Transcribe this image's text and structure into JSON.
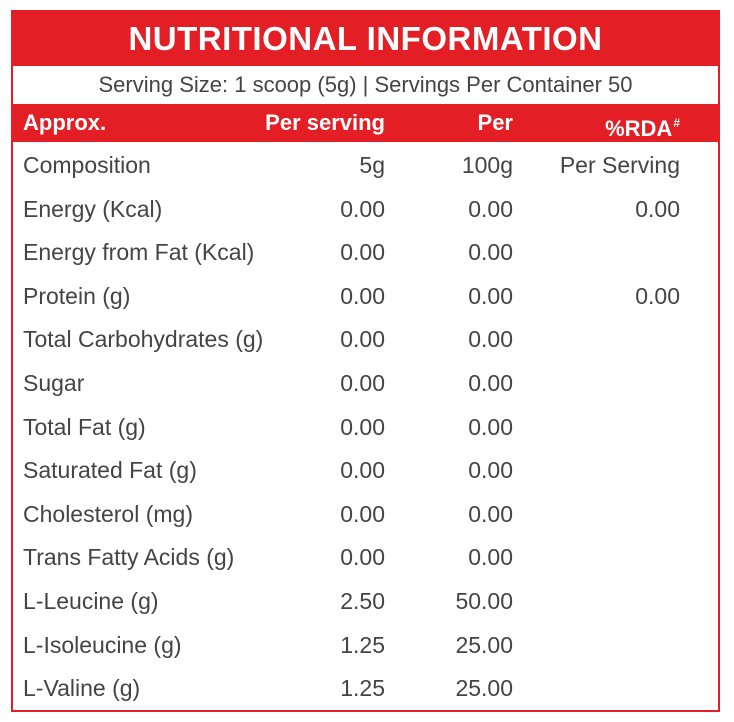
{
  "title": "NUTRITIONAL INFORMATION",
  "serving_line": "Serving Size: 1 scoop (5g)  |  Servings Per Container 50",
  "colors": {
    "accent": "#e31e24",
    "text": "#444444",
    "header_text": "#ffffff"
  },
  "header": {
    "name": "Approx.",
    "per_serving": "Per serving",
    "per": "Per",
    "rda": "%RDA",
    "rda_mark": "#"
  },
  "rows": [
    {
      "name": "Composition",
      "per_serving": "5g",
      "per": "100g",
      "rda": "Per Serving"
    },
    {
      "name": "Energy (Kcal)",
      "per_serving": "0.00",
      "per": "0.00",
      "rda": "0.00"
    },
    {
      "name": "Energy from Fat (Kcal)",
      "per_serving": "0.00",
      "per": "0.00",
      "rda": ""
    },
    {
      "name": "Protein (g)",
      "per_serving": "0.00",
      "per": "0.00",
      "rda": "0.00"
    },
    {
      "name": "Total Carbohydrates (g)",
      "per_serving": "0.00",
      "per": "0.00",
      "rda": ""
    },
    {
      "name": "Sugar",
      "per_serving": "0.00",
      "per": "0.00",
      "rda": ""
    },
    {
      "name": "Total Fat (g)",
      "per_serving": "0.00",
      "per": "0.00",
      "rda": ""
    },
    {
      "name": "Saturated Fat (g)",
      "per_serving": "0.00",
      "per": "0.00",
      "rda": ""
    },
    {
      "name": "Cholesterol (mg)",
      "per_serving": "0.00",
      "per": "0.00",
      "rda": ""
    },
    {
      "name": "Trans Fatty Acids (g)",
      "per_serving": "0.00",
      "per": "0.00",
      "rda": ""
    },
    {
      "name": "L-Leucine (g)",
      "per_serving": "2.50",
      "per": "50.00",
      "rda": ""
    },
    {
      "name": "L-Isoleucine (g)",
      "per_serving": "1.25",
      "per": "25.00",
      "rda": ""
    },
    {
      "name": "L-Valine (g)",
      "per_serving": "1.25",
      "per": "25.00",
      "rda": ""
    }
  ]
}
